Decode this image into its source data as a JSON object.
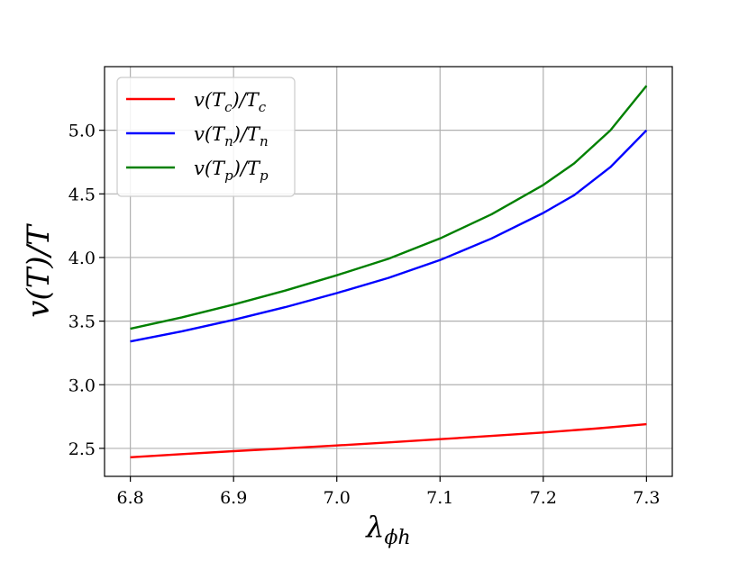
{
  "chart_data": {
    "type": "line",
    "title": "",
    "xlabel": "λ",
    "xlabel_sub": "ϕh",
    "ylabel": "v(T)/T",
    "xlim": [
      6.775,
      7.325
    ],
    "ylim": [
      2.28,
      5.5
    ],
    "xticks": [
      6.8,
      6.9,
      7.0,
      7.1,
      7.2,
      7.3
    ],
    "xtick_labels": [
      "6.8",
      "6.9",
      "7.0",
      "7.1",
      "7.2",
      "7.3"
    ],
    "yticks": [
      2.5,
      3.0,
      3.5,
      4.0,
      4.5,
      5.0
    ],
    "ytick_labels": [
      "2.5",
      "3.0",
      "3.5",
      "4.0",
      "4.5",
      "5.0"
    ],
    "grid": true,
    "legend_position": "top-left",
    "series": [
      {
        "name": "v(Tc)/Tc",
        "name_main": "v(T",
        "name_sub": "c",
        "name_mid": ")/T",
        "name_sub2": "c",
        "color": "#ff0000",
        "x": [
          6.8,
          6.85,
          6.9,
          6.95,
          7.0,
          7.05,
          7.1,
          7.15,
          7.2,
          7.25,
          7.3
        ],
        "y": [
          2.43,
          2.455,
          2.478,
          2.5,
          2.523,
          2.547,
          2.572,
          2.598,
          2.625,
          2.655,
          2.69
        ]
      },
      {
        "name": "v(Tn)/Tn",
        "name_main": "v(T",
        "name_sub": "n",
        "name_mid": ")/T",
        "name_sub2": "n",
        "color": "#0000ff",
        "x": [
          6.8,
          6.85,
          6.9,
          6.95,
          7.0,
          7.05,
          7.1,
          7.15,
          7.2,
          7.23,
          7.265,
          7.3
        ],
        "y": [
          3.34,
          3.42,
          3.51,
          3.61,
          3.72,
          3.84,
          3.98,
          4.15,
          4.35,
          4.49,
          4.71,
          5.0
        ]
      },
      {
        "name": "v(Tp)/Tp",
        "name_main": "v(T",
        "name_sub": "p",
        "name_mid": ")/T",
        "name_sub2": "p",
        "color": "#008000",
        "x": [
          6.8,
          6.85,
          6.9,
          6.95,
          7.0,
          7.05,
          7.1,
          7.15,
          7.2,
          7.23,
          7.265,
          7.3
        ],
        "y": [
          3.44,
          3.53,
          3.63,
          3.74,
          3.86,
          3.99,
          4.15,
          4.34,
          4.57,
          4.74,
          5.0,
          5.35
        ]
      }
    ]
  }
}
